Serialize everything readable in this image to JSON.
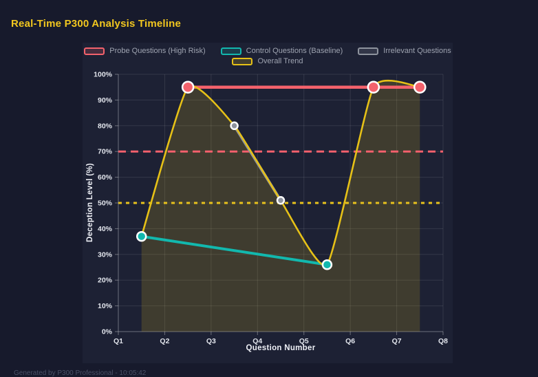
{
  "page": {
    "title": "Real-Time P300 Analysis Timeline",
    "footer": "Generated by P300 Professional - 10:05:42"
  },
  "chart_data": {
    "type": "line",
    "title": "Real-Time P300 Analysis Timeline",
    "xlabel": "Question Number",
    "ylabel": "Deception Level (%)",
    "x_tick_labels": [
      "Q1",
      "Q2",
      "Q3",
      "Q4",
      "Q5",
      "Q6",
      "Q7",
      "Q8"
    ],
    "x_range": [
      1,
      8
    ],
    "ylim": [
      0,
      100
    ],
    "y_tick_labels": [
      "0%",
      "10%",
      "20%",
      "30%",
      "40%",
      "50%",
      "60%",
      "70%",
      "80%",
      "90%",
      "100%"
    ],
    "y_tick_step": 10,
    "grid": true,
    "legend_position": "top",
    "series": [
      {
        "name": "Probe Questions (High Risk)",
        "color": "#f4626c",
        "shape": "straight",
        "line_width": 4.5,
        "point_radius": 8,
        "points": [
          [
            2.5,
            95
          ],
          [
            6.5,
            95
          ],
          [
            7.5,
            95
          ]
        ]
      },
      {
        "name": "Control Questions (Baseline)",
        "color": "#12b8ae",
        "shape": "straight",
        "line_width": 4,
        "point_radius": 6.5,
        "points": [
          [
            1.5,
            37
          ],
          [
            5.5,
            26
          ]
        ]
      },
      {
        "name": "Irrelevant Questions",
        "color": "#8e939d",
        "shape": "straight",
        "line_width": 4,
        "point_radius": 5,
        "points": [
          [
            3.5,
            80
          ],
          [
            4.5,
            51
          ]
        ]
      },
      {
        "name": "Overall Trend",
        "color": "#e6c117",
        "shape": "spline",
        "fill": true,
        "fill_opacity": 0.17,
        "line_width": 2.6,
        "point_radius": 0,
        "points": [
          [
            1.5,
            37
          ],
          [
            2.5,
            95
          ],
          [
            3.5,
            80
          ],
          [
            4.5,
            51
          ],
          [
            5.5,
            26
          ],
          [
            6.5,
            95
          ],
          [
            7.5,
            95
          ]
        ]
      }
    ],
    "reference_lines": [
      {
        "value": 70,
        "color": "#f4606c",
        "style": "dashed"
      },
      {
        "value": 50,
        "color": "#e8c21c",
        "style": "dotted"
      }
    ]
  }
}
